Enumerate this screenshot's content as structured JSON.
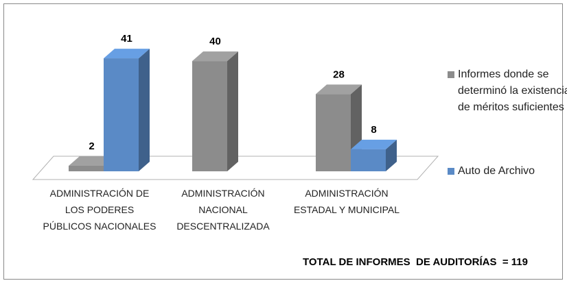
{
  "chart_data": {
    "type": "bar3d",
    "categories": [
      "ADMINISTRACIÓN DE LOS PODERES PÚBLICOS NACIONALES",
      "ADMINISTRACIÓN NACIONAL DESCENTRALIZADA",
      "ADMINISTRACIÓN ESTADAL Y MUNICIPAL"
    ],
    "series": [
      {
        "name": "Informes donde se determinó la existencia de méritos suficientes",
        "color": "#8c8c8c",
        "values": [
          2,
          40,
          28
        ]
      },
      {
        "name": "Auto de Archivo",
        "color": "#5a8ac6",
        "values": [
          41,
          null,
          8
        ]
      }
    ],
    "ylim": [
      0,
      45
    ],
    "legend": "right",
    "annotation": "TOTAL DE INFORMES  DE AUDITORÍAS  = 119"
  }
}
